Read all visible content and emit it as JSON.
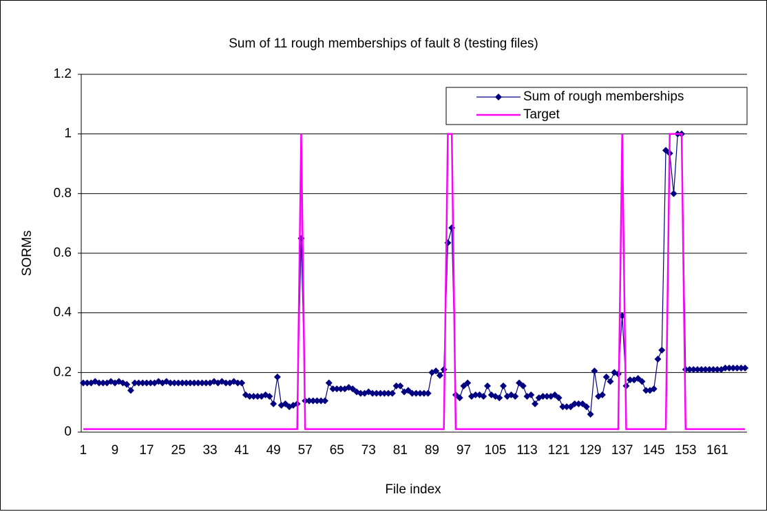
{
  "chart_data": {
    "type": "line",
    "title": "Sum of 11 rough memberships of fault 8 (testing files)",
    "x_label": "File index",
    "y_label": "SORMs",
    "categories": [
      "1",
      null,
      null,
      null,
      null,
      null,
      null,
      null,
      "9",
      null,
      null,
      null,
      null,
      null,
      null,
      null,
      "17",
      null,
      null,
      null,
      null,
      null,
      null,
      null,
      "25",
      null,
      null,
      null,
      null,
      null,
      null,
      null,
      "33",
      null,
      null,
      null,
      null,
      null,
      null,
      null,
      "41",
      null,
      null,
      null,
      null,
      null,
      null,
      null,
      "49",
      null,
      null,
      null,
      null,
      null,
      null,
      null,
      "57",
      null,
      null,
      null,
      null,
      null,
      null,
      null,
      "65",
      null,
      null,
      null,
      null,
      null,
      null,
      null,
      "73",
      null,
      null,
      null,
      null,
      null,
      null,
      null,
      "81",
      null,
      null,
      null,
      null,
      null,
      null,
      null,
      "89",
      null,
      null,
      null,
      null,
      null,
      null,
      null,
      "97",
      null,
      null,
      null,
      null,
      null,
      null,
      null,
      "105",
      null,
      null,
      null,
      null,
      null,
      null,
      null,
      "113",
      null,
      null,
      null,
      null,
      null,
      null,
      null,
      "121",
      null,
      null,
      null,
      null,
      null,
      null,
      null,
      "129",
      null,
      null,
      null,
      null,
      null,
      null,
      null,
      "137",
      null,
      null,
      null,
      null,
      null,
      null,
      null,
      "145",
      null,
      null,
      null,
      null,
      null,
      null,
      null,
      "153",
      null,
      null,
      null,
      null,
      null,
      null,
      null,
      "161",
      null,
      null,
      null,
      null,
      null,
      null,
      null
    ],
    "series": [
      {
        "name": "Sum of rough memberships",
        "color": "#000080",
        "marker": "diamond",
        "values": [
          0.165,
          0.165,
          0.165,
          0.17,
          0.165,
          0.165,
          0.165,
          0.17,
          0.165,
          0.17,
          0.165,
          0.16,
          0.14,
          0.165,
          0.165,
          0.165,
          0.165,
          0.165,
          0.165,
          0.17,
          0.165,
          0.17,
          0.165,
          0.165,
          0.165,
          0.165,
          0.165,
          0.165,
          0.165,
          0.165,
          0.165,
          0.165,
          0.165,
          0.17,
          0.165,
          0.17,
          0.165,
          0.165,
          0.17,
          0.165,
          0.165,
          0.125,
          0.12,
          0.12,
          0.12,
          0.12,
          0.125,
          0.12,
          0.095,
          0.185,
          0.09,
          0.095,
          0.085,
          0.09,
          0.095,
          0.65,
          0.105,
          0.105,
          0.105,
          0.105,
          0.105,
          0.105,
          0.165,
          0.145,
          0.145,
          0.145,
          0.145,
          0.15,
          0.145,
          0.135,
          0.13,
          0.13,
          0.135,
          0.13,
          0.13,
          0.13,
          0.13,
          0.13,
          0.13,
          0.155,
          0.155,
          0.135,
          0.14,
          0.13,
          0.13,
          0.13,
          0.13,
          0.13,
          0.2,
          0.205,
          0.19,
          0.21,
          0.635,
          0.685,
          0.125,
          0.115,
          0.155,
          0.165,
          0.12,
          0.125,
          0.125,
          0.12,
          0.155,
          0.125,
          0.12,
          0.115,
          0.155,
          0.12,
          0.125,
          0.12,
          0.165,
          0.155,
          0.12,
          0.125,
          0.095,
          0.115,
          0.12,
          0.12,
          0.12,
          0.125,
          0.115,
          0.085,
          0.085,
          0.085,
          0.095,
          0.095,
          0.095,
          0.085,
          0.06,
          0.205,
          0.12,
          0.125,
          0.185,
          0.17,
          0.2,
          0.195,
          0.39,
          0.155,
          0.175,
          0.175,
          0.18,
          0.17,
          0.14,
          0.14,
          0.145,
          0.245,
          0.275,
          0.945,
          0.935,
          0.8,
          1,
          1,
          0.21,
          0.21,
          0.21,
          0.21,
          0.21,
          0.21,
          0.21,
          0.21,
          0.21,
          0.21,
          0.215,
          0.215,
          0.215,
          0.215,
          0.215,
          0.215
        ]
      },
      {
        "name": "Target",
        "color": "#ff00ff",
        "marker": "none",
        "values": [
          0.01,
          0.01,
          0.01,
          0.01,
          0.01,
          0.01,
          0.01,
          0.01,
          0.01,
          0.01,
          0.01,
          0.01,
          0.01,
          0.01,
          0.01,
          0.01,
          0.01,
          0.01,
          0.01,
          0.01,
          0.01,
          0.01,
          0.01,
          0.01,
          0.01,
          0.01,
          0.01,
          0.01,
          0.01,
          0.01,
          0.01,
          0.01,
          0.01,
          0.01,
          0.01,
          0.01,
          0.01,
          0.01,
          0.01,
          0.01,
          0.01,
          0.01,
          0.01,
          0.01,
          0.01,
          0.01,
          0.01,
          0.01,
          0.01,
          0.01,
          0.01,
          0.01,
          0.01,
          0.01,
          0.01,
          1,
          0.01,
          0.01,
          0.01,
          0.01,
          0.01,
          0.01,
          0.01,
          0.01,
          0.01,
          0.01,
          0.01,
          0.01,
          0.01,
          0.01,
          0.01,
          0.01,
          0.01,
          0.01,
          0.01,
          0.01,
          0.01,
          0.01,
          0.01,
          0.01,
          0.01,
          0.01,
          0.01,
          0.01,
          0.01,
          0.01,
          0.01,
          0.01,
          0.01,
          0.01,
          0.01,
          0.01,
          1,
          1,
          0.01,
          0.01,
          0.01,
          0.01,
          0.01,
          0.01,
          0.01,
          0.01,
          0.01,
          0.01,
          0.01,
          0.01,
          0.01,
          0.01,
          0.01,
          0.01,
          0.01,
          0.01,
          0.01,
          0.01,
          0.01,
          0.01,
          0.01,
          0.01,
          0.01,
          0.01,
          0.01,
          0.01,
          0.01,
          0.01,
          0.01,
          0.01,
          0.01,
          0.01,
          0.01,
          0.01,
          0.01,
          0.01,
          0.01,
          0.01,
          0.01,
          0.01,
          1,
          0.01,
          0.01,
          0.01,
          0.01,
          0.01,
          0.01,
          0.01,
          0.01,
          0.01,
          0.01,
          0.01,
          1,
          1,
          1,
          1,
          0.01,
          0.01,
          0.01,
          0.01,
          0.01,
          0.01,
          0.01,
          0.01,
          0.01,
          0.01,
          0.01,
          0.01,
          0.01,
          0.01,
          0.01,
          0.01
        ]
      }
    ],
    "ylim": [
      0,
      1.2
    ],
    "yticks": [
      0,
      0.2,
      0.4,
      0.6,
      0.8,
      1,
      1.2
    ],
    "grid": true,
    "legend": "top-right"
  }
}
